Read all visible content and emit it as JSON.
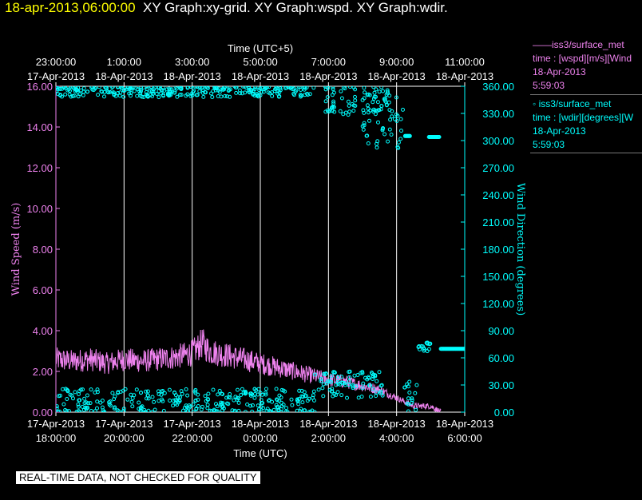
{
  "header": {
    "timestamp": "18-apr-2013,06:00:00",
    "graph_titles": "XY Graph:xy-grid.  XY Graph:wspd.  XY Graph:wdir."
  },
  "legend": {
    "wspd": {
      "name": "——iss3/surface_met",
      "field": "time : [wspd][m/s][Wind",
      "date": "18-Apr-2013",
      "time": "5:59:03"
    },
    "wdir": {
      "name": "◦ iss3/surface_met",
      "field": "time : [wdir][degrees][W",
      "date": "18-Apr-2013",
      "time": "5:59:03"
    }
  },
  "qc_note": "REAL-TIME DATA, NOT CHECKED FOR QUALITY",
  "colors": {
    "wspd": "#ee82ee",
    "wdir": "#00ffff",
    "axis": "#ffffff",
    "grid": "#ffffff",
    "timestamp": "#ffff00"
  },
  "chart_data": {
    "type": "line",
    "x_range_hours_utc": [
      18,
      30
    ],
    "top_axis": {
      "label": "Time (UTC+5)",
      "ticks": [
        {
          "hour": 18,
          "time": "23:00:00",
          "date": "17-Apr-2013"
        },
        {
          "hour": 20,
          "time": "1:00:00",
          "date": "18-Apr-2013"
        },
        {
          "hour": 22,
          "time": "3:00:00",
          "date": "18-Apr-2013"
        },
        {
          "hour": 24,
          "time": "5:00:00",
          "date": "18-Apr-2013"
        },
        {
          "hour": 26,
          "time": "7:00:00",
          "date": "18-Apr-2013"
        },
        {
          "hour": 28,
          "time": "9:00:00",
          "date": "18-Apr-2013"
        },
        {
          "hour": 30,
          "time": "11:00:00",
          "date": "18-Apr-2013"
        }
      ]
    },
    "bottom_axis": {
      "label": "Time (UTC)",
      "ticks": [
        {
          "hour": 18,
          "date": "17-Apr-2013",
          "time": "18:00:00"
        },
        {
          "hour": 20,
          "date": "17-Apr-2013",
          "time": "20:00:00"
        },
        {
          "hour": 22,
          "date": "17-Apr-2013",
          "time": "22:00:00"
        },
        {
          "hour": 24,
          "date": "18-Apr-2013",
          "time": "0:00:00"
        },
        {
          "hour": 26,
          "date": "18-Apr-2013",
          "time": "2:00:00"
        },
        {
          "hour": 28,
          "date": "18-Apr-2013",
          "time": "4:00:00"
        },
        {
          "hour": 30,
          "date": "18-Apr-2013",
          "time": "6:00:00"
        }
      ]
    },
    "grid_x_hours": [
      20,
      22,
      24,
      26,
      28
    ],
    "left_axis": {
      "label": "Wind Speed (m/s)",
      "ylim": [
        0,
        16
      ],
      "ticks": [
        "0.00",
        "2.00",
        "4.00",
        "6.00",
        "8.00",
        "10.00",
        "12.00",
        "14.00",
        "16.00"
      ]
    },
    "right_axis": {
      "label": "Wind Direction (degrees)",
      "ylim": [
        0,
        360
      ],
      "ticks": [
        "0.00",
        "30.00",
        "60.00",
        "90.00",
        "120.00",
        "150.00",
        "180.00",
        "210.00",
        "240.00",
        "270.00",
        "300.00",
        "330.00",
        "360.00"
      ]
    },
    "series": [
      {
        "name": "wspd",
        "kind": "line",
        "axis": "left",
        "points": [
          [
            18.0,
            2.6
          ],
          [
            18.5,
            2.5
          ],
          [
            19.0,
            2.6
          ],
          [
            19.5,
            2.4
          ],
          [
            20.0,
            2.6
          ],
          [
            20.5,
            2.5
          ],
          [
            21.0,
            2.6
          ],
          [
            21.5,
            2.7
          ],
          [
            22.0,
            2.9
          ],
          [
            22.3,
            3.4
          ],
          [
            22.5,
            3.0
          ],
          [
            23.0,
            2.8
          ],
          [
            23.5,
            2.6
          ],
          [
            24.0,
            2.4
          ],
          [
            24.5,
            2.2
          ],
          [
            25.0,
            2.0
          ],
          [
            25.5,
            1.8
          ],
          [
            26.0,
            1.6
          ],
          [
            26.5,
            1.5
          ],
          [
            27.0,
            1.3
          ],
          [
            27.5,
            1.1
          ],
          [
            28.0,
            0.7
          ],
          [
            28.5,
            0.3
          ],
          [
            29.0,
            0.3
          ],
          [
            29.3,
            0.0
          ]
        ]
      },
      {
        "name": "wdir",
        "kind": "scatter",
        "axis": "right",
        "clusters": [
          {
            "x_start": 18.0,
            "x_end": 25.6,
            "y_mean": 355,
            "spread": 7
          },
          {
            "x_start": 25.9,
            "x_end": 27.8,
            "y_mean": 345,
            "spread": 18
          },
          {
            "x_start": 27.0,
            "x_end": 28.2,
            "y_mean": 320,
            "spread": 30
          },
          {
            "x_start": 18.0,
            "x_end": 25.6,
            "y_mean": 12,
            "spread": 14
          },
          {
            "x_start": 25.6,
            "x_end": 27.6,
            "y_mean": 30,
            "spread": 15
          },
          {
            "x_start": 28.2,
            "x_end": 28.6,
            "y_mean": 15,
            "spread": 20
          },
          {
            "x_start": 28.6,
            "x_end": 29.0,
            "y_mean": 72,
            "spread": 5
          }
        ],
        "flat_segments": [
          {
            "x_start": 28.25,
            "x_end": 28.4,
            "y": 305
          },
          {
            "x_start": 28.95,
            "x_end": 29.25,
            "y": 304
          },
          {
            "x_start": 29.3,
            "x_end": 30.0,
            "y": 70
          }
        ]
      }
    ]
  }
}
